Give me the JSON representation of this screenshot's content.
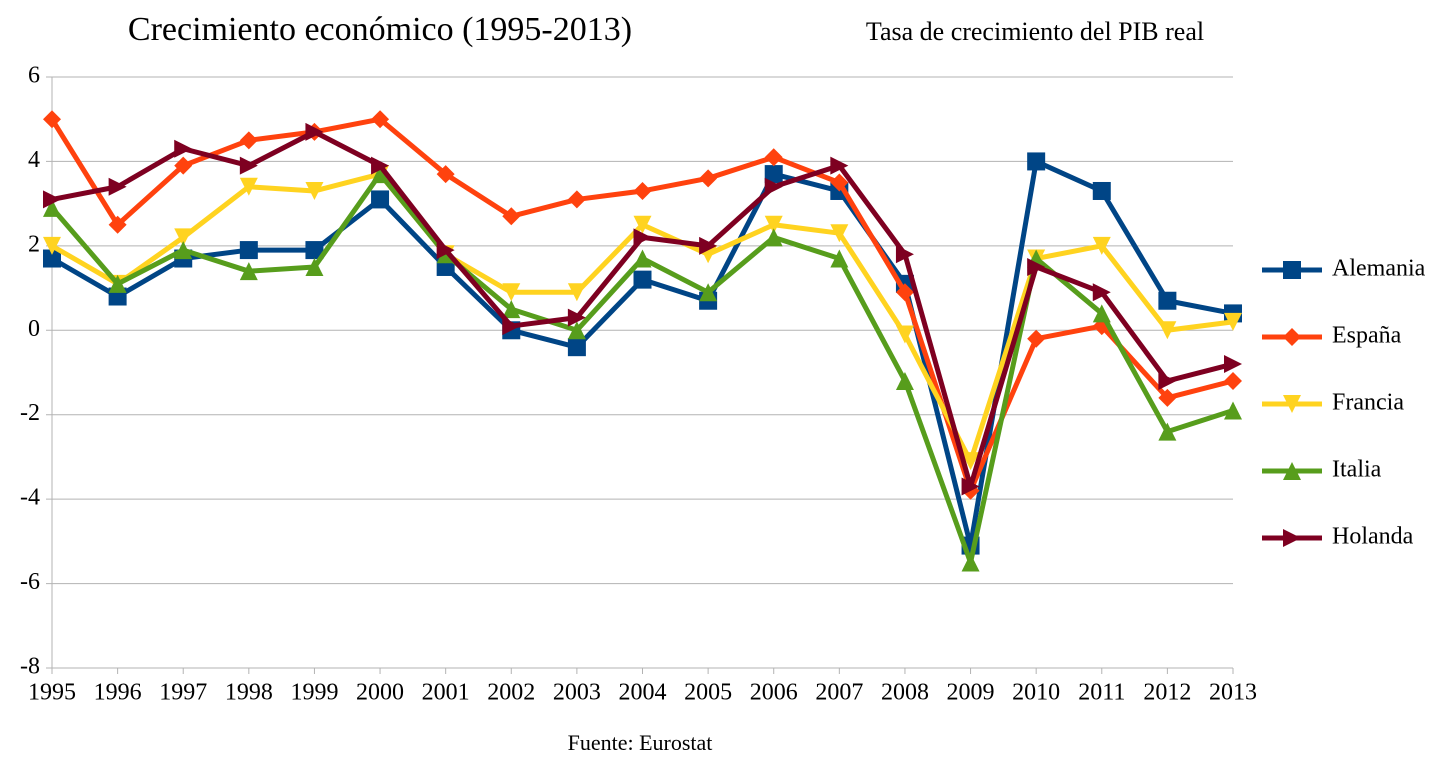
{
  "chart_data": {
    "type": "line",
    "title": "Crecimiento económico (1995-2013)",
    "subtitle": "Tasa de crecimiento del PIB real",
    "note": "Fuente: Eurostat",
    "categories": [
      "1995",
      "1996",
      "1997",
      "1998",
      "1999",
      "2000",
      "2001",
      "2002",
      "2003",
      "2004",
      "2005",
      "2006",
      "2007",
      "2008",
      "2009",
      "2010",
      "2011",
      "2012",
      "2013"
    ],
    "series": [
      {
        "name": "Alemania",
        "color": "#004586",
        "marker": "square",
        "values": [
          1.7,
          0.8,
          1.7,
          1.9,
          1.9,
          3.1,
          1.5,
          0.0,
          -0.4,
          1.2,
          0.7,
          3.7,
          3.3,
          1.1,
          -5.1,
          4.0,
          3.3,
          0.7,
          0.4
        ]
      },
      {
        "name": "España",
        "color": "#ff420e",
        "marker": "diamond",
        "values": [
          5.0,
          2.5,
          3.9,
          4.5,
          4.7,
          5.0,
          3.7,
          2.7,
          3.1,
          3.3,
          3.6,
          4.1,
          3.5,
          0.9,
          -3.8,
          -0.2,
          0.1,
          -1.6,
          -1.2
        ]
      },
      {
        "name": "Francia",
        "color": "#ffd320",
        "marker": "triangle-down",
        "values": [
          2.0,
          1.1,
          2.2,
          3.4,
          3.3,
          3.7,
          1.8,
          0.9,
          0.9,
          2.5,
          1.8,
          2.5,
          2.3,
          -0.1,
          -3.1,
          1.7,
          2.0,
          0.0,
          0.2
        ]
      },
      {
        "name": "Italia",
        "color": "#579d1c",
        "marker": "triangle-up",
        "values": [
          2.9,
          1.1,
          1.9,
          1.4,
          1.5,
          3.7,
          1.8,
          0.5,
          0.0,
          1.7,
          0.9,
          2.2,
          1.7,
          -1.2,
          -5.5,
          1.7,
          0.4,
          -2.4,
          -1.9
        ]
      },
      {
        "name": "Holanda",
        "color": "#7e0021",
        "marker": "triangle-right",
        "values": [
          3.1,
          3.4,
          4.3,
          3.9,
          4.7,
          3.9,
          1.9,
          0.1,
          0.3,
          2.2,
          2.0,
          3.4,
          3.9,
          1.8,
          -3.7,
          1.5,
          0.9,
          -1.2,
          -0.8
        ]
      }
    ],
    "ylim": [
      -8,
      6
    ],
    "yticks": [
      -8,
      -6,
      -4,
      -2,
      0,
      2,
      4,
      6
    ],
    "grid": true,
    "legend": "right"
  }
}
